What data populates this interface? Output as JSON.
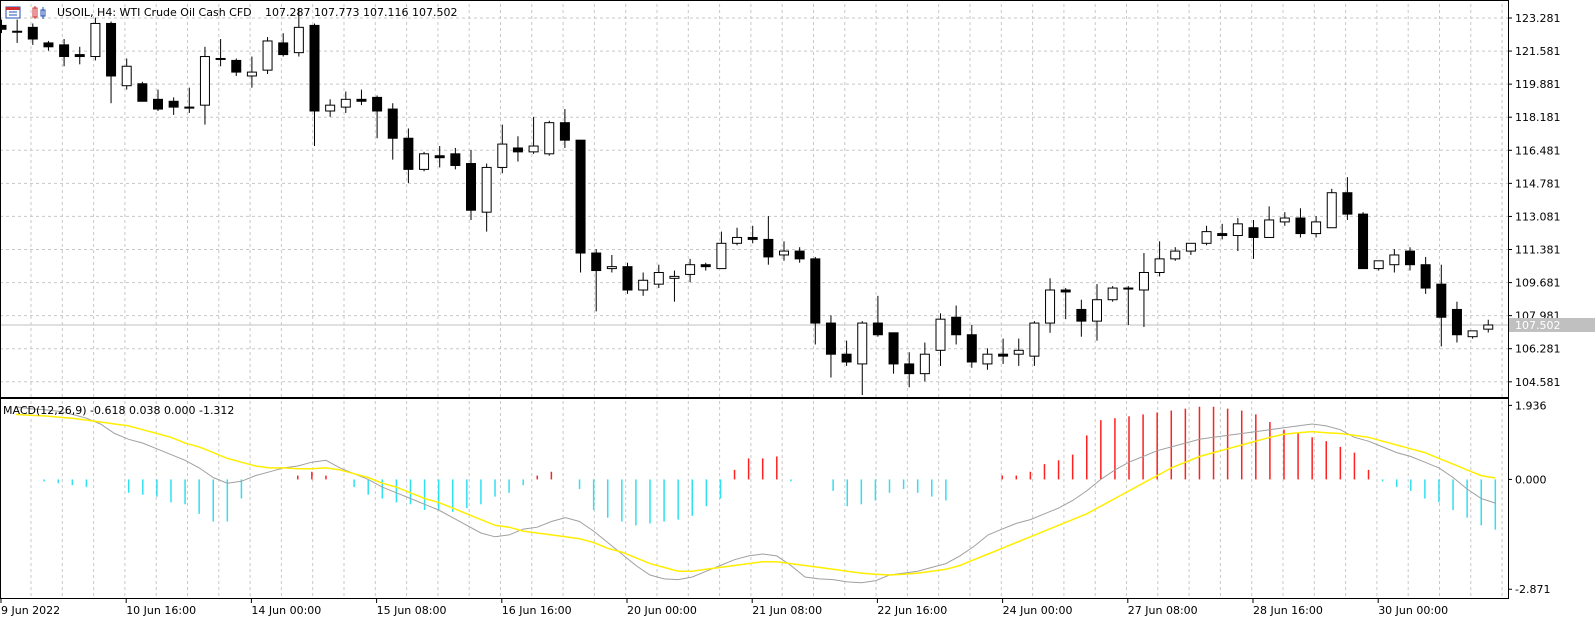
{
  "header": {
    "symbol_line": "USOIL, H4:  WTI Crude Oil Cash CFD",
    "ohlc_line": "107.287 107.773 107.116 107.502",
    "icon_left": "bar-chart-icon",
    "icon_right": "candle-chart-icon"
  },
  "macd_header": "MACD(12,26,9) -0.618 0.038 0.000 -1.312",
  "colors": {
    "bull_fill": "#ffffff",
    "bear_fill": "#000000",
    "grid": "#c8c8c8",
    "hist_up": "#ff2020",
    "hist_down": "#30e0f0",
    "macd_line": "#a0a0a0",
    "signal_line": "#ffee00",
    "current_price_bg": "#c0c0c0"
  },
  "chart_data": [
    {
      "type": "candlestick",
      "symbol": "USOIL",
      "timeframe": "H4",
      "ylim": [
        103.8,
        124.0
      ],
      "y_ticks": [
        "123.281",
        "121.581",
        "119.881",
        "118.181",
        "116.481",
        "114.781",
        "113.081",
        "111.381",
        "109.681",
        "107.981",
        "106.281",
        "104.581"
      ],
      "current_price": "107.502",
      "x_labels": [
        "9 Jun 2022",
        "10 Jun 16:00",
        "14 Jun 00:00",
        "15 Jun 08:00",
        "16 Jun 16:00",
        "20 Jun 00:00",
        "21 Jun 08:00",
        "22 Jun 16:00",
        "24 Jun 00:00",
        "27 Jun 08:00",
        "28 Jun 16:00",
        "30 Jun 00:00"
      ],
      "x_label_bar_index": [
        0,
        8,
        16,
        24,
        32,
        40,
        48,
        56,
        64,
        72,
        80,
        88
      ],
      "ohlc": [
        [
          122.9,
          123.2,
          122.5,
          122.7
        ],
        [
          122.6,
          123.2,
          122.0,
          122.6
        ],
        [
          122.8,
          123.0,
          121.9,
          122.2
        ],
        [
          122.0,
          122.1,
          121.6,
          121.8
        ],
        [
          121.9,
          122.2,
          120.8,
          121.3
        ],
        [
          121.4,
          121.8,
          120.9,
          121.3
        ],
        [
          121.3,
          123.3,
          121.1,
          123.0
        ],
        [
          123.0,
          123.1,
          118.9,
          120.3
        ],
        [
          119.8,
          121.2,
          119.6,
          120.8
        ],
        [
          119.9,
          120.0,
          119.0,
          119.0
        ],
        [
          119.1,
          119.6,
          118.5,
          118.6
        ],
        [
          119.0,
          119.2,
          118.3,
          118.7
        ],
        [
          118.7,
          119.7,
          118.4,
          118.7
        ],
        [
          118.8,
          121.8,
          117.8,
          121.3
        ],
        [
          121.2,
          122.2,
          120.8,
          121.2
        ],
        [
          121.1,
          121.2,
          120.3,
          120.5
        ],
        [
          120.3,
          121.3,
          119.7,
          120.5
        ],
        [
          120.6,
          122.3,
          120.4,
          122.1
        ],
        [
          122.0,
          122.5,
          121.3,
          121.4
        ],
        [
          121.5,
          123.8,
          121.3,
          122.8
        ],
        [
          122.9,
          123.0,
          116.7,
          118.5
        ],
        [
          118.5,
          119.1,
          118.2,
          118.8
        ],
        [
          118.7,
          119.5,
          118.4,
          119.1
        ],
        [
          119.1,
          119.6,
          118.8,
          119.0
        ],
        [
          119.2,
          119.3,
          117.1,
          118.5
        ],
        [
          118.6,
          118.9,
          116.0,
          117.1
        ],
        [
          117.1,
          117.6,
          114.8,
          115.5
        ],
        [
          115.5,
          116.4,
          115.4,
          116.3
        ],
        [
          116.2,
          116.7,
          115.6,
          116.1
        ],
        [
          116.3,
          116.6,
          115.5,
          115.7
        ],
        [
          115.8,
          116.5,
          112.9,
          113.4
        ],
        [
          113.3,
          115.8,
          112.3,
          115.6
        ],
        [
          115.6,
          117.8,
          115.3,
          116.8
        ],
        [
          116.6,
          117.2,
          115.9,
          116.4
        ],
        [
          116.4,
          118.2,
          116.3,
          116.7
        ],
        [
          116.3,
          118.0,
          116.2,
          117.9
        ],
        [
          117.9,
          118.6,
          116.6,
          117.0
        ],
        [
          117.0,
          117.0,
          110.2,
          111.2
        ],
        [
          111.2,
          111.4,
          108.2,
          110.3
        ],
        [
          110.4,
          111.1,
          110.2,
          110.5
        ],
        [
          110.5,
          110.7,
          109.1,
          109.3
        ],
        [
          109.3,
          110.2,
          109.0,
          109.8
        ],
        [
          109.6,
          110.6,
          109.4,
          110.2
        ],
        [
          109.9,
          110.3,
          108.7,
          110.0
        ],
        [
          110.1,
          110.9,
          109.7,
          110.6
        ],
        [
          110.6,
          110.7,
          110.3,
          110.5
        ],
        [
          110.4,
          112.3,
          110.4,
          111.7
        ],
        [
          111.7,
          112.5,
          111.6,
          112.0
        ],
        [
          112.0,
          112.6,
          111.7,
          111.9
        ],
        [
          111.9,
          113.1,
          110.6,
          111.0
        ],
        [
          111.1,
          111.8,
          110.8,
          111.3
        ],
        [
          111.3,
          111.5,
          110.7,
          110.9
        ],
        [
          110.9,
          111.0,
          106.5,
          107.6
        ],
        [
          107.6,
          108.0,
          104.8,
          106.0
        ],
        [
          106.0,
          106.7,
          105.4,
          105.6
        ],
        [
          105.5,
          107.7,
          103.9,
          107.6
        ],
        [
          107.6,
          109.0,
          106.9,
          107.0
        ],
        [
          107.1,
          107.1,
          105.0,
          105.5
        ],
        [
          105.5,
          106.1,
          104.3,
          105.0
        ],
        [
          105.0,
          106.6,
          104.6,
          106.0
        ],
        [
          106.2,
          108.1,
          105.4,
          107.8
        ],
        [
          107.9,
          108.5,
          106.5,
          107.0
        ],
        [
          107.0,
          107.5,
          105.3,
          105.6
        ],
        [
          105.5,
          106.3,
          105.2,
          106.0
        ],
        [
          106.0,
          106.8,
          105.5,
          105.9
        ],
        [
          106.0,
          106.8,
          105.4,
          106.2
        ],
        [
          105.9,
          107.7,
          105.4,
          107.6
        ],
        [
          107.6,
          109.9,
          107.1,
          109.3
        ],
        [
          109.3,
          109.4,
          107.8,
          109.2
        ],
        [
          108.3,
          108.8,
          106.9,
          107.7
        ],
        [
          107.7,
          109.6,
          106.7,
          108.8
        ],
        [
          108.8,
          109.5,
          108.7,
          109.4
        ],
        [
          109.4,
          109.5,
          107.5,
          109.4
        ],
        [
          109.3,
          111.2,
          107.4,
          110.2
        ],
        [
          110.2,
          111.8,
          110.0,
          110.9
        ],
        [
          110.9,
          111.5,
          110.8,
          111.3
        ],
        [
          111.3,
          111.7,
          111.1,
          111.7
        ],
        [
          111.7,
          112.6,
          111.6,
          112.3
        ],
        [
          112.2,
          112.7,
          111.9,
          112.1
        ],
        [
          112.1,
          113.0,
          111.3,
          112.7
        ],
        [
          112.5,
          112.9,
          110.9,
          112.0
        ],
        [
          112.0,
          113.6,
          112.0,
          112.9
        ],
        [
          112.8,
          113.3,
          112.6,
          113.0
        ],
        [
          113.0,
          113.5,
          112.0,
          112.2
        ],
        [
          112.2,
          113.1,
          112.0,
          112.8
        ],
        [
          112.5,
          114.5,
          112.5,
          114.3
        ],
        [
          114.3,
          115.1,
          112.9,
          113.2
        ],
        [
          113.2,
          113.3,
          110.4,
          110.4
        ],
        [
          110.4,
          110.6,
          110.3,
          110.8
        ],
        [
          110.6,
          111.4,
          110.2,
          111.1
        ],
        [
          111.3,
          111.5,
          110.3,
          110.6
        ],
        [
          110.6,
          111.0,
          109.1,
          109.4
        ],
        [
          109.6,
          110.6,
          106.4,
          107.9
        ],
        [
          108.3,
          108.7,
          106.6,
          107.0
        ],
        [
          106.9,
          107.2,
          106.8,
          107.2
        ],
        [
          107.287,
          107.773,
          107.116,
          107.502
        ]
      ]
    },
    {
      "type": "macd",
      "params": "12,26,9",
      "ylim": [
        -3.1,
        2.05
      ],
      "y_ticks": [
        "1.936",
        "0.000",
        "-2.871"
      ],
      "histogram": [
        0,
        0,
        -0.05,
        -0.1,
        -0.15,
        -0.2,
        0,
        0,
        -0.35,
        -0.4,
        -0.45,
        -0.6,
        -0.65,
        -0.9,
        -1.1,
        -1.1,
        -0.5,
        0,
        0,
        0,
        0.1,
        0.2,
        0.1,
        0,
        -0.2,
        -0.4,
        -0.5,
        -0.6,
        -0.65,
        -0.8,
        -0.8,
        -0.85,
        -0.75,
        -0.65,
        -0.45,
        -0.35,
        -0.15,
        0.1,
        0.2,
        0,
        -0.25,
        -0.8,
        -1.0,
        -1.1,
        -1.2,
        -1.15,
        -1.1,
        -1.05,
        -0.95,
        -0.7,
        -0.5,
        0.25,
        0.55,
        0.55,
        0.6,
        -0.05,
        0,
        0,
        -0.3,
        -0.7,
        -0.65,
        -0.55,
        -0.35,
        -0.25,
        -0.35,
        -0.45,
        -0.55,
        0,
        0,
        0,
        0.1,
        0.1,
        0.2,
        0.4,
        0.5,
        0.65,
        1.15,
        1.55,
        1.6,
        1.65,
        1.7,
        1.75,
        1.8,
        1.85,
        1.9,
        1.9,
        1.85,
        1.8,
        1.7,
        1.5,
        1.3,
        1.2,
        1.1,
        1.0,
        0.85,
        0.7,
        0.25,
        -0.05,
        -0.2,
        -0.3,
        -0.5,
        -0.6,
        -0.8,
        -1.0,
        -1.2,
        -1.312
      ],
      "macd": [
        1.9,
        1.85,
        1.82,
        1.78,
        1.7,
        1.6,
        1.45,
        1.2,
        1.05,
        0.95,
        0.8,
        0.65,
        0.5,
        0.3,
        0.05,
        -0.1,
        -0.05,
        0.1,
        0.2,
        0.3,
        0.35,
        0.45,
        0.5,
        0.3,
        0.15,
        0.0,
        -0.2,
        -0.35,
        -0.5,
        -0.65,
        -0.8,
        -1.0,
        -1.2,
        -1.4,
        -1.5,
        -1.45,
        -1.3,
        -1.25,
        -1.1,
        -1.0,
        -1.1,
        -1.35,
        -1.65,
        -1.95,
        -2.25,
        -2.5,
        -2.6,
        -2.62,
        -2.55,
        -2.4,
        -2.25,
        -2.1,
        -2.0,
        -1.95,
        -2.0,
        -2.25,
        -2.55,
        -2.6,
        -2.62,
        -2.68,
        -2.7,
        -2.65,
        -2.5,
        -2.45,
        -2.4,
        -2.3,
        -2.2,
        -2.0,
        -1.75,
        -1.45,
        -1.3,
        -1.15,
        -1.05,
        -0.9,
        -0.75,
        -0.55,
        -0.3,
        0.0,
        0.25,
        0.45,
        0.6,
        0.75,
        0.85,
        0.95,
        1.05,
        1.1,
        1.15,
        1.2,
        1.25,
        1.3,
        1.35,
        1.4,
        1.45,
        1.4,
        1.3,
        1.1,
        1.0,
        0.85,
        0.7,
        0.6,
        0.45,
        0.3,
        0.05,
        -0.25,
        -0.5,
        -0.618
      ],
      "signal": [
        1.7,
        1.68,
        1.66,
        1.63,
        1.6,
        1.55,
        1.5,
        1.45,
        1.4,
        1.3,
        1.2,
        1.1,
        0.95,
        0.85,
        0.7,
        0.55,
        0.45,
        0.35,
        0.3,
        0.3,
        0.28,
        0.28,
        0.3,
        0.25,
        0.15,
        0.05,
        -0.1,
        -0.2,
        -0.35,
        -0.5,
        -0.6,
        -0.75,
        -0.9,
        -1.05,
        -1.2,
        -1.25,
        -1.35,
        -1.4,
        -1.45,
        -1.5,
        -1.55,
        -1.65,
        -1.8,
        -1.9,
        -2.05,
        -2.2,
        -2.3,
        -2.4,
        -2.4,
        -2.35,
        -2.3,
        -2.25,
        -2.2,
        -2.15,
        -2.15,
        -2.2,
        -2.25,
        -2.3,
        -2.35,
        -2.4,
        -2.45,
        -2.48,
        -2.5,
        -2.48,
        -2.45,
        -2.4,
        -2.35,
        -2.25,
        -2.1,
        -1.95,
        -1.8,
        -1.65,
        -1.5,
        -1.35,
        -1.2,
        -1.05,
        -0.9,
        -0.7,
        -0.5,
        -0.3,
        -0.1,
        0.1,
        0.3,
        0.45,
        0.6,
        0.7,
        0.8,
        0.9,
        1.0,
        1.1,
        1.18,
        1.22,
        1.25,
        1.22,
        1.2,
        1.15,
        1.1,
        1.0,
        0.9,
        0.8,
        0.7,
        0.55,
        0.4,
        0.25,
        0.1,
        0.038
      ]
    }
  ]
}
